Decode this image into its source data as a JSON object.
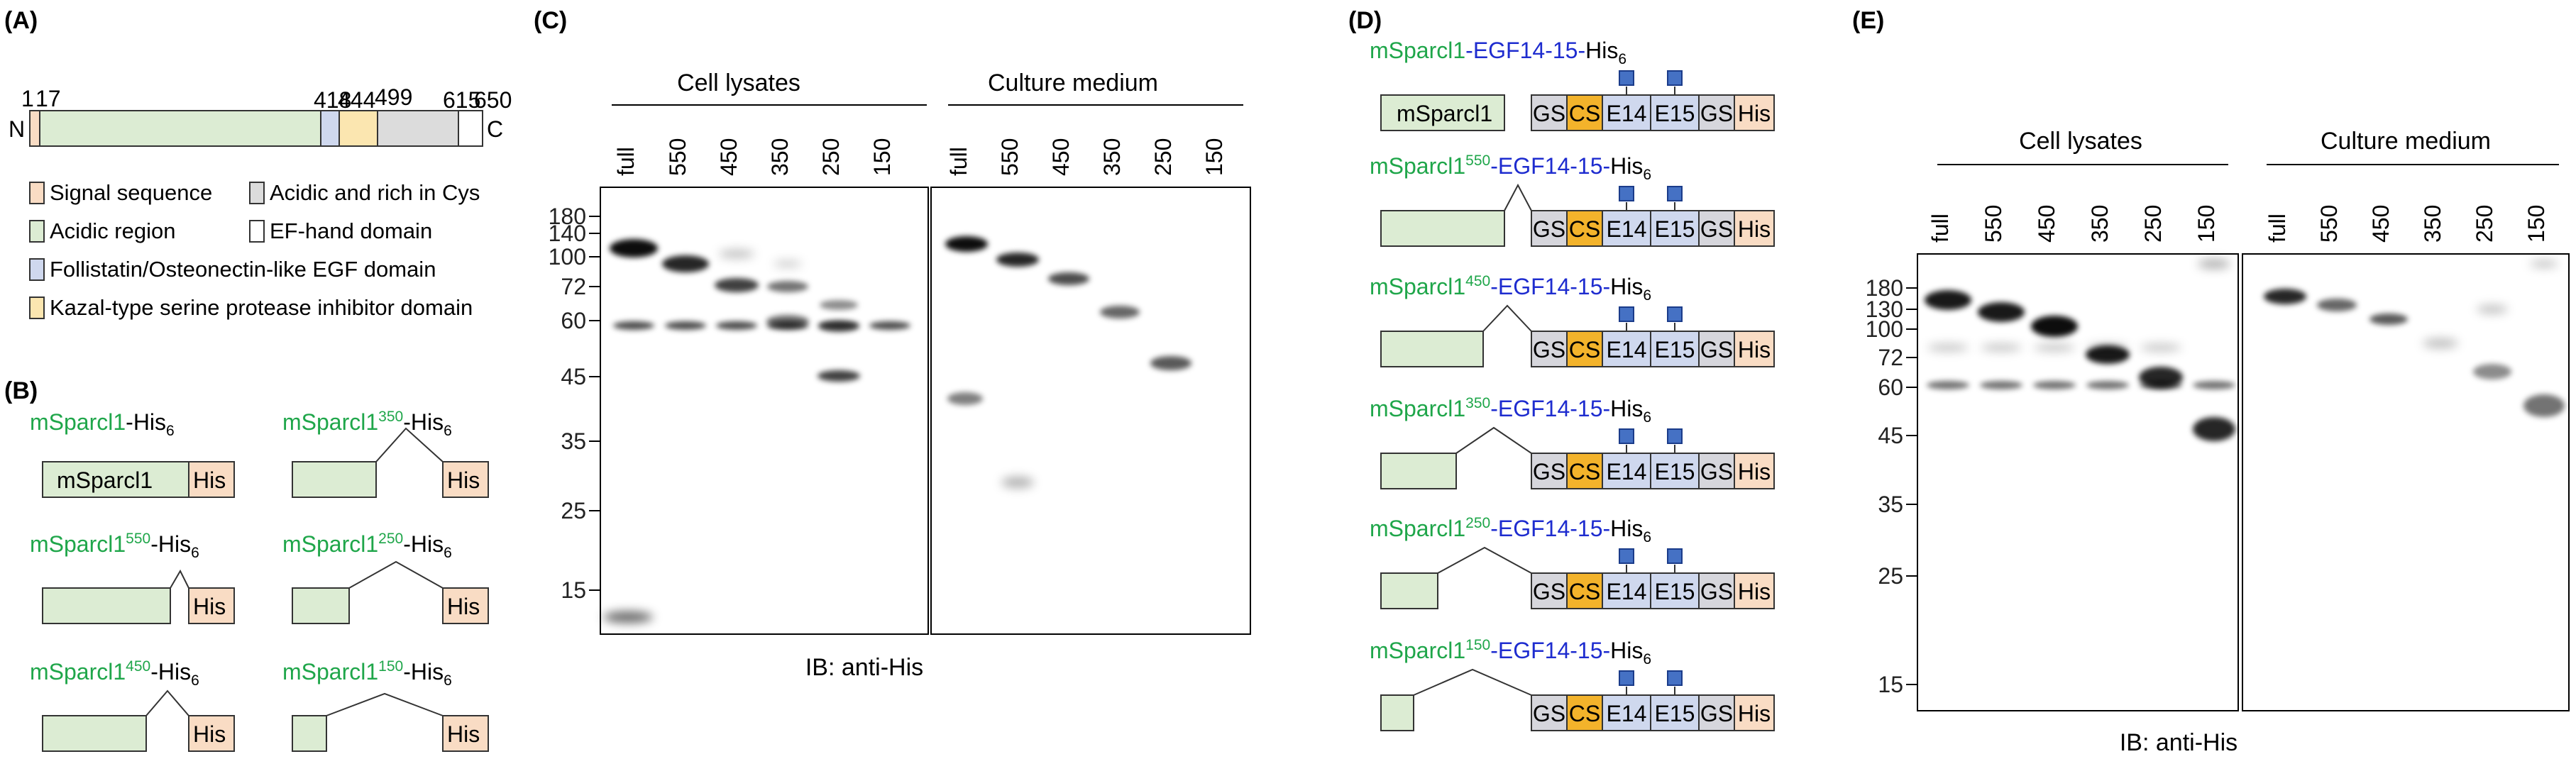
{
  "panel_labels": {
    "a": "(A)",
    "b": "(B)",
    "c": "(C)",
    "d": "(D)",
    "e": "(E)"
  },
  "colors": {
    "signal": "#f9dcc4",
    "acidic": "#dcecd3",
    "follistatin": "#cfd8ee",
    "kazal": "#fbe6b0",
    "acidic_cys": "#dcdcdc",
    "ef_hand": "#ffffff",
    "cs": "#f3b32b",
    "gs": "#d6d6dc",
    "egf": "#cfd8ee",
    "his": "#f9dcc4",
    "glyco": "#4571c4",
    "green_text": "#1fa64a",
    "blue_text": "#1e2ccf"
  },
  "panel_a": {
    "n_label": "N",
    "c_label": "C",
    "positions": [
      "1",
      "17",
      "418",
      "444",
      "499",
      "615",
      "650"
    ],
    "legend": [
      "Signal sequence",
      "Acidic region",
      "Follistatin/Osteonectin-like EGF domain",
      "Kazal-type serine protease inhibitor domain",
      "Acidic and rich in Cys",
      "EF-hand domain"
    ]
  },
  "panel_b": {
    "constructs": [
      {
        "prefix": "mSparcl1",
        "sup": "",
        "suffix": "-His",
        "sub": "6",
        "box_text": "mSparcl1",
        "his": "His"
      },
      {
        "prefix": "mSparcl1",
        "sup": "350",
        "suffix": "-His",
        "sub": "6",
        "his": "His"
      },
      {
        "prefix": "mSparcl1",
        "sup": "550",
        "suffix": "-His",
        "sub": "6",
        "his": "His"
      },
      {
        "prefix": "mSparcl1",
        "sup": "250",
        "suffix": "-His",
        "sub": "6",
        "his": "His"
      },
      {
        "prefix": "mSparcl1",
        "sup": "450",
        "suffix": "-His",
        "sub": "6",
        "his": "His"
      },
      {
        "prefix": "mSparcl1",
        "sup": "150",
        "suffix": "-His",
        "sub": "6",
        "his": "His"
      }
    ]
  },
  "panel_c": {
    "groups": [
      "Cell lysates",
      "Culture medium"
    ],
    "lanes": [
      "full",
      "550",
      "450",
      "350",
      "250",
      "150"
    ],
    "mw_markers": [
      "180",
      "140",
      "100",
      "72",
      "60",
      "45",
      "35",
      "25",
      "15"
    ],
    "footer": "IB: anti-His"
  },
  "panel_d": {
    "constructs": [
      {
        "prefix": "mSparcl1",
        "sup": "",
        "mid": "-EGF14-15-",
        "his": "His",
        "sub": "6",
        "box_text": "mSparcl1"
      },
      {
        "prefix": "mSparcl1",
        "sup": "550",
        "mid": "-EGF14-15-",
        "his": "His",
        "sub": "6"
      },
      {
        "prefix": "mSparcl1",
        "sup": "450",
        "mid": "-EGF14-15-",
        "his": "His",
        "sub": "6"
      },
      {
        "prefix": "mSparcl1",
        "sup": "350",
        "mid": "-EGF14-15-",
        "his": "His",
        "sub": "6"
      },
      {
        "prefix": "mSparcl1",
        "sup": "250",
        "mid": "-EGF14-15-",
        "his": "His",
        "sub": "6"
      },
      {
        "prefix": "mSparcl1",
        "sup": "150",
        "mid": "-EGF14-15-",
        "his": "His",
        "sub": "6"
      }
    ],
    "tail": [
      "GS",
      "CS",
      "E14",
      "E15",
      "GS",
      "His"
    ]
  },
  "panel_e": {
    "groups": [
      "Cell lysates",
      "Culture medium"
    ],
    "lanes": [
      "full",
      "550",
      "450",
      "350",
      "250",
      "150"
    ],
    "mw_markers": [
      "180",
      "130",
      "100",
      "72",
      "60",
      "45",
      "35",
      "25",
      "15"
    ],
    "footer": "IB: anti-His"
  }
}
